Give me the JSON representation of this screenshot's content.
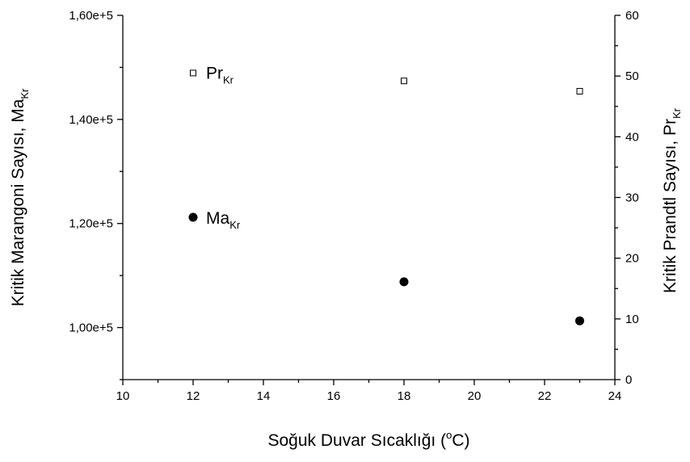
{
  "chart_data": {
    "type": "scatter",
    "x": [
      12,
      18,
      23
    ],
    "xlabel": "Soğuk Duvar Sıcaklığı (",
    "xlabel_sup": "o",
    "xlabel_end": "C)",
    "xlim": [
      10,
      24
    ],
    "xticks": [
      10,
      12,
      14,
      16,
      18,
      20,
      22,
      24
    ],
    "xtick_labels": [
      "10",
      "12",
      "14",
      "16",
      "18",
      "20",
      "22",
      "24"
    ],
    "ylabel_left": "Kritik Marangoni Sayısı, Ma",
    "ylabel_left_sub": "Kr",
    "ylim_left": [
      90000,
      160000
    ],
    "yticks_left": [
      100000,
      120000,
      140000,
      160000
    ],
    "ytick_labels_left": [
      "1,00e+5",
      "1,20e+5",
      "1,40e+5",
      "1,60e+5"
    ],
    "ylabel_right": "Kritik Prandtl Sayısı, Pr",
    "ylabel_right_sub": "Kr",
    "ylim_right": [
      0,
      60
    ],
    "yticks_right": [
      0,
      10,
      20,
      30,
      40,
      50,
      60
    ],
    "ytick_labels_right": [
      "0",
      "10",
      "20",
      "30",
      "40",
      "50",
      "60"
    ],
    "grid": false,
    "series": [
      {
        "key": "ma",
        "name": "Ma",
        "name_sub": "Kr",
        "axis": "left",
        "marker": "filled-circle",
        "color": "#000000",
        "values": [
          121200,
          108800,
          101300
        ]
      },
      {
        "key": "pr",
        "name": "Pr",
        "name_sub": "Kr",
        "axis": "right",
        "marker": "open-square",
        "color": "#000000",
        "values": [
          50.5,
          49.2,
          47.5
        ]
      }
    ]
  }
}
